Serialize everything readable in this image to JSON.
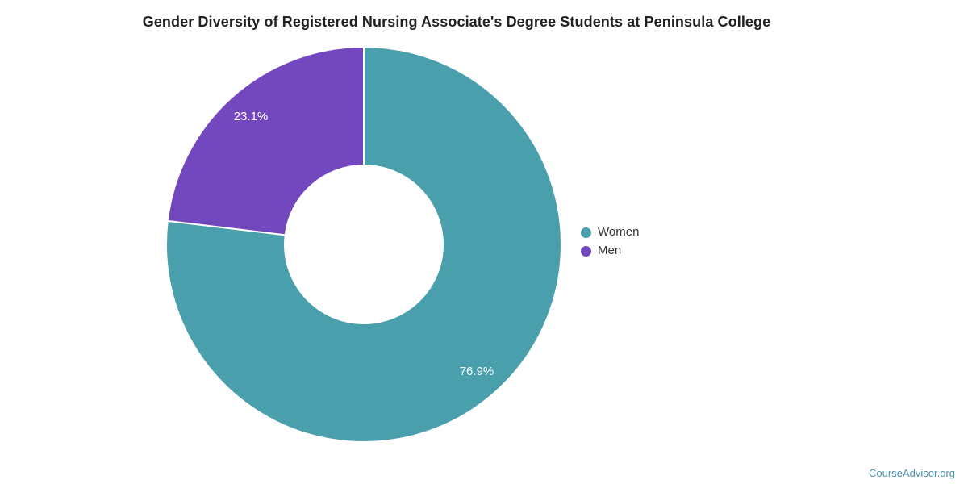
{
  "chart_data": {
    "type": "pie",
    "title": "Gender Diversity of Registered Nursing Associate's Degree Students at Peninsula College",
    "series": [
      {
        "label": "Women",
        "value": 76.9,
        "display": "76.9%",
        "color": "#4a9fad"
      },
      {
        "label": "Men",
        "value": 23.1,
        "display": "23.1%",
        "color": "#7348be"
      }
    ],
    "hole_ratio": 0.4,
    "start_angle": "top",
    "direction": "clockwise",
    "legend_position": "right",
    "slice_border_color": "#ffffff",
    "slice_label_color": "#ffffff",
    "title_color": "#212121",
    "legend_text_color": "#333333"
  },
  "watermark": {
    "text": "CourseAdvisor.org",
    "color": "#4b93ae"
  }
}
